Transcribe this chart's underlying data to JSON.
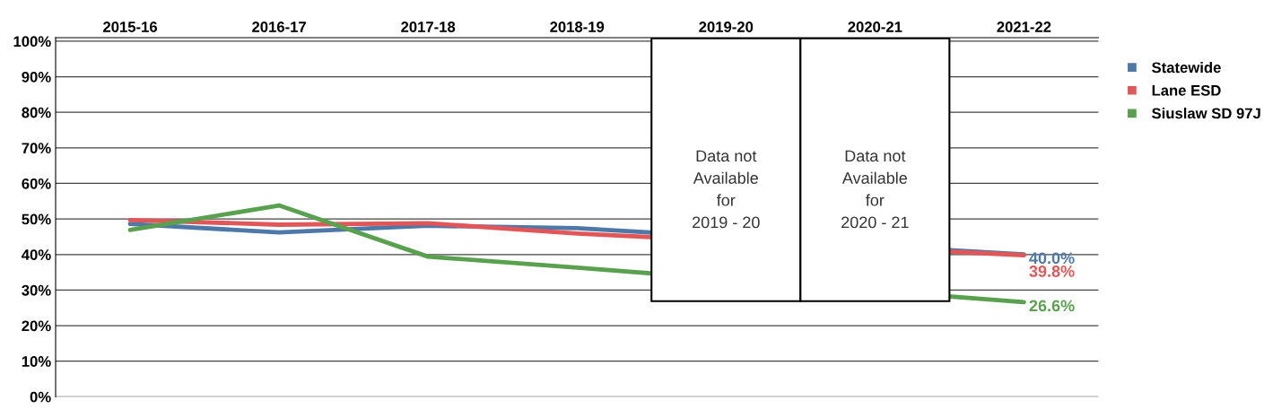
{
  "chart_data": {
    "type": "line",
    "categories": [
      "2015-16",
      "2016-17",
      "2017-18",
      "2018-19",
      "2019-20",
      "2020-21",
      "2021-22"
    ],
    "series": [
      {
        "name": "Statewide",
        "color": "#4e79a7",
        "values": [
          48.6,
          46.2,
          48.1,
          47.4,
          null,
          null,
          40.0
        ],
        "value_labels": [
          null,
          null,
          null,
          null,
          null,
          null,
          "40.0%"
        ]
      },
      {
        "name": "Lane ESD",
        "color": "#e15759",
        "values": [
          49.7,
          48.4,
          48.8,
          45.9,
          null,
          null,
          39.8
        ],
        "value_labels": [
          null,
          null,
          null,
          null,
          null,
          null,
          "39.8%"
        ]
      },
      {
        "name": "Siuslaw SD 97J",
        "color": "#59a14f",
        "values": [
          46.9,
          53.8,
          39.4,
          36.3,
          null,
          null,
          26.6
        ],
        "value_labels": [
          null,
          null,
          null,
          null,
          null,
          null,
          "26.6%"
        ]
      }
    ],
    "ylim": [
      0,
      101
    ],
    "yticks": [
      {
        "value": 0,
        "label": "0%"
      },
      {
        "value": 10,
        "label": "10%"
      },
      {
        "value": 20,
        "label": "20%"
      },
      {
        "value": 30,
        "label": "30%"
      },
      {
        "value": 40,
        "label": "40%"
      },
      {
        "value": 50,
        "label": "50%"
      },
      {
        "value": 60,
        "label": "60%"
      },
      {
        "value": 70,
        "label": "70%"
      },
      {
        "value": 80,
        "label": "80%"
      },
      {
        "value": 90,
        "label": "90%"
      },
      {
        "value": 100,
        "label": "100%"
      }
    ],
    "grid": "y",
    "legend": "top right",
    "annotations": [
      "Data not\nAvailable\nfor\n2019 - 20",
      "Data not\nAvailable\nfor\n2020 - 21"
    ]
  }
}
